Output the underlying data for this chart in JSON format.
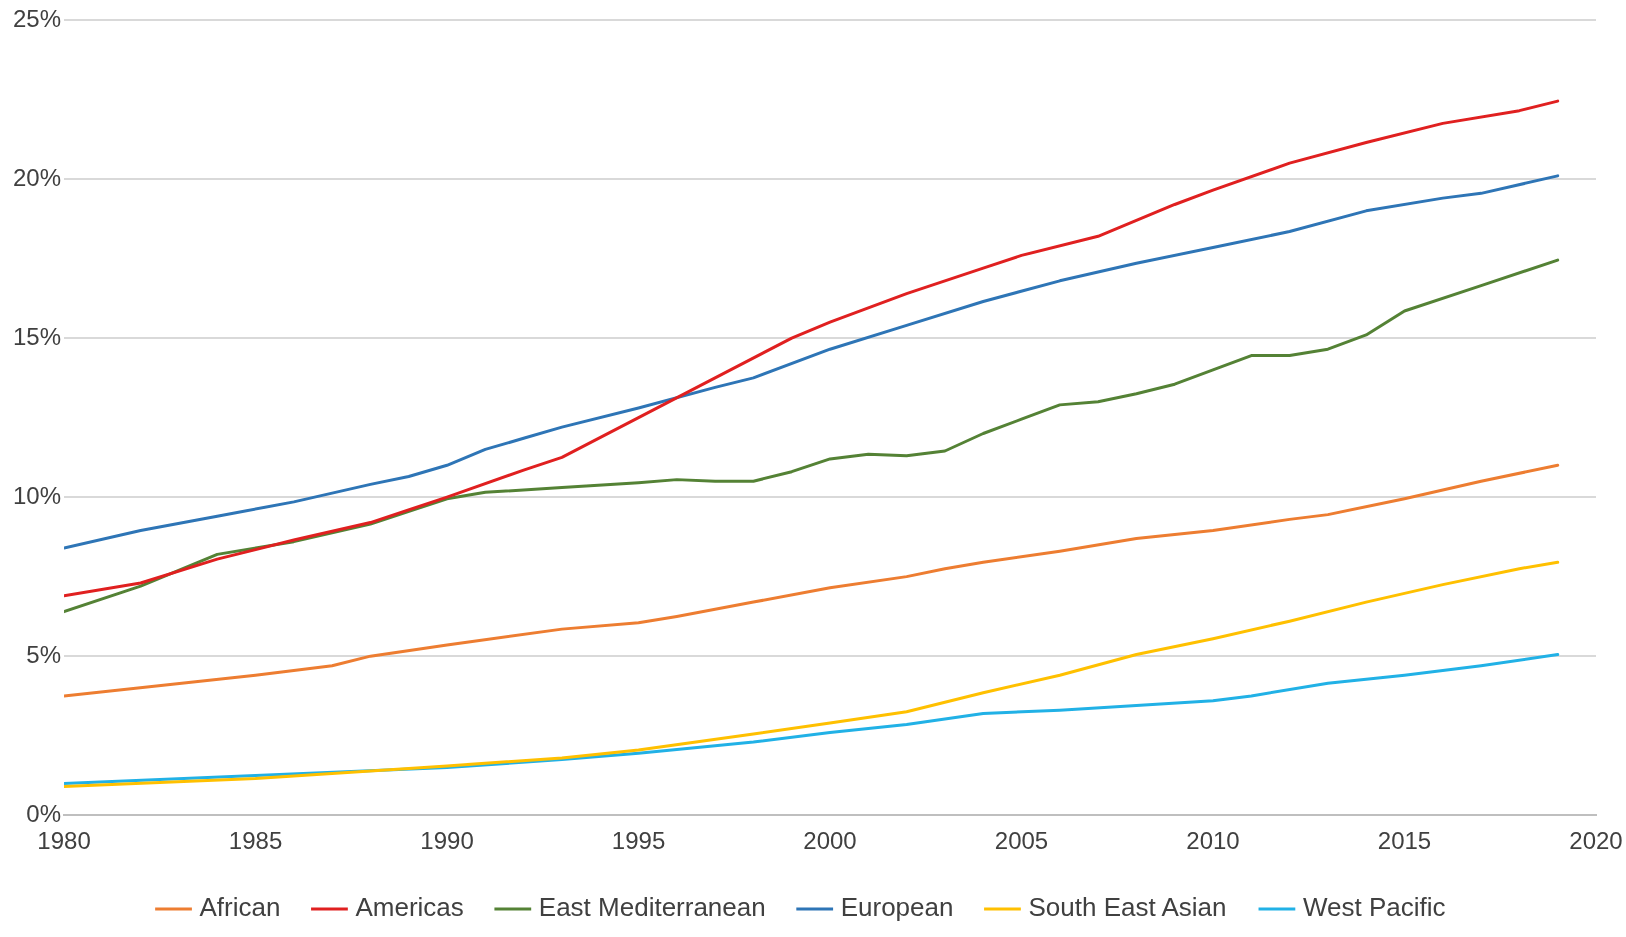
{
  "chart_data": {
    "type": "line",
    "xlim": [
      1980,
      2020
    ],
    "xticks": [
      1980,
      1985,
      1990,
      1995,
      2000,
      2005,
      2010,
      2015,
      2020
    ],
    "ylim": [
      0,
      25
    ],
    "yticks": [
      {
        "value": 0,
        "label": "0%"
      },
      {
        "value": 5,
        "label": "5%"
      },
      {
        "value": 10,
        "label": "10%"
      },
      {
        "value": 15,
        "label": "15%"
      },
      {
        "value": 20,
        "label": "20%"
      },
      {
        "value": 25,
        "label": "25%"
      }
    ],
    "grid": "y",
    "legend": "bottom",
    "marker": "none",
    "line_style": "solid",
    "series": [
      {
        "name": "African",
        "color": "#ed7d31",
        "x": [
          1980,
          1985,
          1986,
          1987,
          1988,
          1990,
          1993,
          1995,
          1996,
          1998,
          2000,
          2002,
          2003,
          2004,
          2006,
          2008,
          2010,
          2012,
          2013,
          2015,
          2017,
          2019
        ],
        "values": [
          3.75,
          4.4,
          4.55,
          4.7,
          5.0,
          5.35,
          5.85,
          6.05,
          6.25,
          6.7,
          7.15,
          7.5,
          7.75,
          7.95,
          8.3,
          8.7,
          8.95,
          9.3,
          9.45,
          9.95,
          10.5,
          11.0
        ]
      },
      {
        "name": "Americas",
        "color": "#e02020",
        "x": [
          1980,
          1982,
          1984,
          1986,
          1988,
          1990,
          1992,
          1993,
          1995,
          1997,
          1999,
          2000,
          2002,
          2004,
          2005,
          2007,
          2009,
          2010,
          2012,
          2014,
          2016,
          2018,
          2019
        ],
        "values": [
          6.9,
          7.3,
          8.05,
          8.65,
          9.2,
          10.0,
          10.85,
          11.25,
          12.5,
          13.75,
          15.0,
          15.5,
          16.4,
          17.2,
          17.6,
          18.2,
          19.2,
          19.65,
          20.5,
          21.15,
          21.75,
          22.15,
          22.45
        ]
      },
      {
        "name": "East Mediterranean",
        "color": "#548235",
        "x": [
          1980,
          1982,
          1984,
          1986,
          1988,
          1990,
          1991,
          1993,
          1995,
          1996,
          1997,
          1998,
          1999,
          2000,
          2001,
          2002,
          2003,
          2004,
          2005,
          2006,
          2007,
          2008,
          2009,
          2010,
          2011,
          2012,
          2013,
          2014,
          2015,
          2017,
          2019
        ],
        "values": [
          6.4,
          7.2,
          8.2,
          8.6,
          9.15,
          9.95,
          10.15,
          10.3,
          10.45,
          10.55,
          10.5,
          10.5,
          10.8,
          11.2,
          11.35,
          11.3,
          11.45,
          12.0,
          12.45,
          12.9,
          13.0,
          13.25,
          13.55,
          14.0,
          14.45,
          14.45,
          14.65,
          15.1,
          15.85,
          16.65,
          17.45
        ]
      },
      {
        "name": "European",
        "color": "#2e75b6",
        "x": [
          1980,
          1982,
          1984,
          1986,
          1988,
          1989,
          1990,
          1991,
          1992,
          1993,
          1995,
          1997,
          1998,
          2000,
          2002,
          2004,
          2006,
          2008,
          2010,
          2012,
          2014,
          2016,
          2017,
          2019
        ],
        "values": [
          8.4,
          8.95,
          9.4,
          9.85,
          10.4,
          10.65,
          11.0,
          11.5,
          11.85,
          12.2,
          12.8,
          13.45,
          13.75,
          14.65,
          15.4,
          16.15,
          16.8,
          17.35,
          17.85,
          18.35,
          19.0,
          19.4,
          19.55,
          20.1
        ]
      },
      {
        "name": "South East Asian",
        "color": "#ffc000",
        "x": [
          1980,
          1985,
          1990,
          1993,
          1995,
          1998,
          2000,
          2002,
          2004,
          2006,
          2008,
          2010,
          2012,
          2014,
          2016,
          2018,
          2019
        ],
        "values": [
          0.9,
          1.15,
          1.55,
          1.8,
          2.05,
          2.55,
          2.9,
          3.25,
          3.85,
          4.4,
          5.05,
          5.55,
          6.1,
          6.7,
          7.25,
          7.75,
          7.95
        ]
      },
      {
        "name": "West Pacific",
        "color": "#21b1e6",
        "x": [
          1980,
          1985,
          1990,
          1993,
          1995,
          1998,
          2000,
          2002,
          2004,
          2006,
          2008,
          2010,
          2011,
          2013,
          2015,
          2017,
          2019
        ],
        "values": [
          1.0,
          1.25,
          1.5,
          1.75,
          1.95,
          2.3,
          2.6,
          2.85,
          3.2,
          3.3,
          3.45,
          3.6,
          3.75,
          4.15,
          4.4,
          4.7,
          5.05
        ]
      }
    ]
  }
}
